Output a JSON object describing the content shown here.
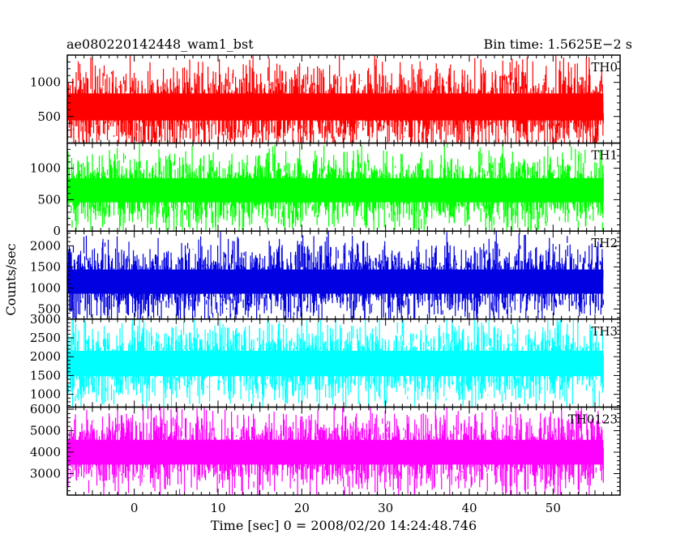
{
  "chart_data": {
    "type": "line",
    "title_left": "ae080220142448_wam1_bst",
    "title_right": "Bin time: 1.5625E−2 s",
    "xlabel": "Time [sec] 0 = 2008/02/20 14:24:48.746",
    "ylabel": "Counts/sec",
    "xlim": [
      -8,
      58
    ],
    "data_x_range": [
      -8,
      56
    ],
    "x_ticks": [
      0,
      10,
      20,
      30,
      40,
      50
    ],
    "x_tick_labels": [
      "0",
      "10",
      "20",
      "30",
      "40",
      "50"
    ],
    "grid": false,
    "series": [
      {
        "name": "TH0",
        "color": "#ff0000",
        "ylim": [
          110,
          1400
        ],
        "y_ticks": [
          500,
          1000
        ],
        "y_tick_labels": [
          "500",
          "1000"
        ],
        "mean": 640,
        "spread": 330
      },
      {
        "name": "TH1",
        "color": "#00ff00",
        "ylim": [
          0,
          1400
        ],
        "y_ticks": [
          0,
          500,
          1000
        ],
        "y_tick_labels": [
          "0",
          "500",
          "1000"
        ],
        "mean": 650,
        "spread": 320
      },
      {
        "name": "TH2",
        "color": "#0000e0",
        "ylim": [
          260,
          2350
        ],
        "y_ticks": [
          500,
          1000,
          1500,
          2000
        ],
        "y_tick_labels": [
          "500",
          "1000",
          "1500",
          "2000"
        ],
        "mean": 1150,
        "spread": 480
      },
      {
        "name": "TH3",
        "color": "#00ffff",
        "ylim": [
          660,
          3000
        ],
        "y_ticks": [
          1000,
          1500,
          2000,
          2500,
          3000
        ],
        "y_tick_labels": [
          "1000",
          "1500",
          "2000",
          "2500",
          "3000"
        ],
        "mean": 1820,
        "spread": 560
      },
      {
        "name": "TH0123",
        "color": "#ff00ff",
        "ylim": [
          2000,
          6100
        ],
        "y_ticks": [
          3000,
          4000,
          5000,
          6000
        ],
        "y_tick_labels": [
          "3000",
          "4000",
          "5000",
          "6000"
        ],
        "mean": 4000,
        "spread": 960
      }
    ]
  }
}
